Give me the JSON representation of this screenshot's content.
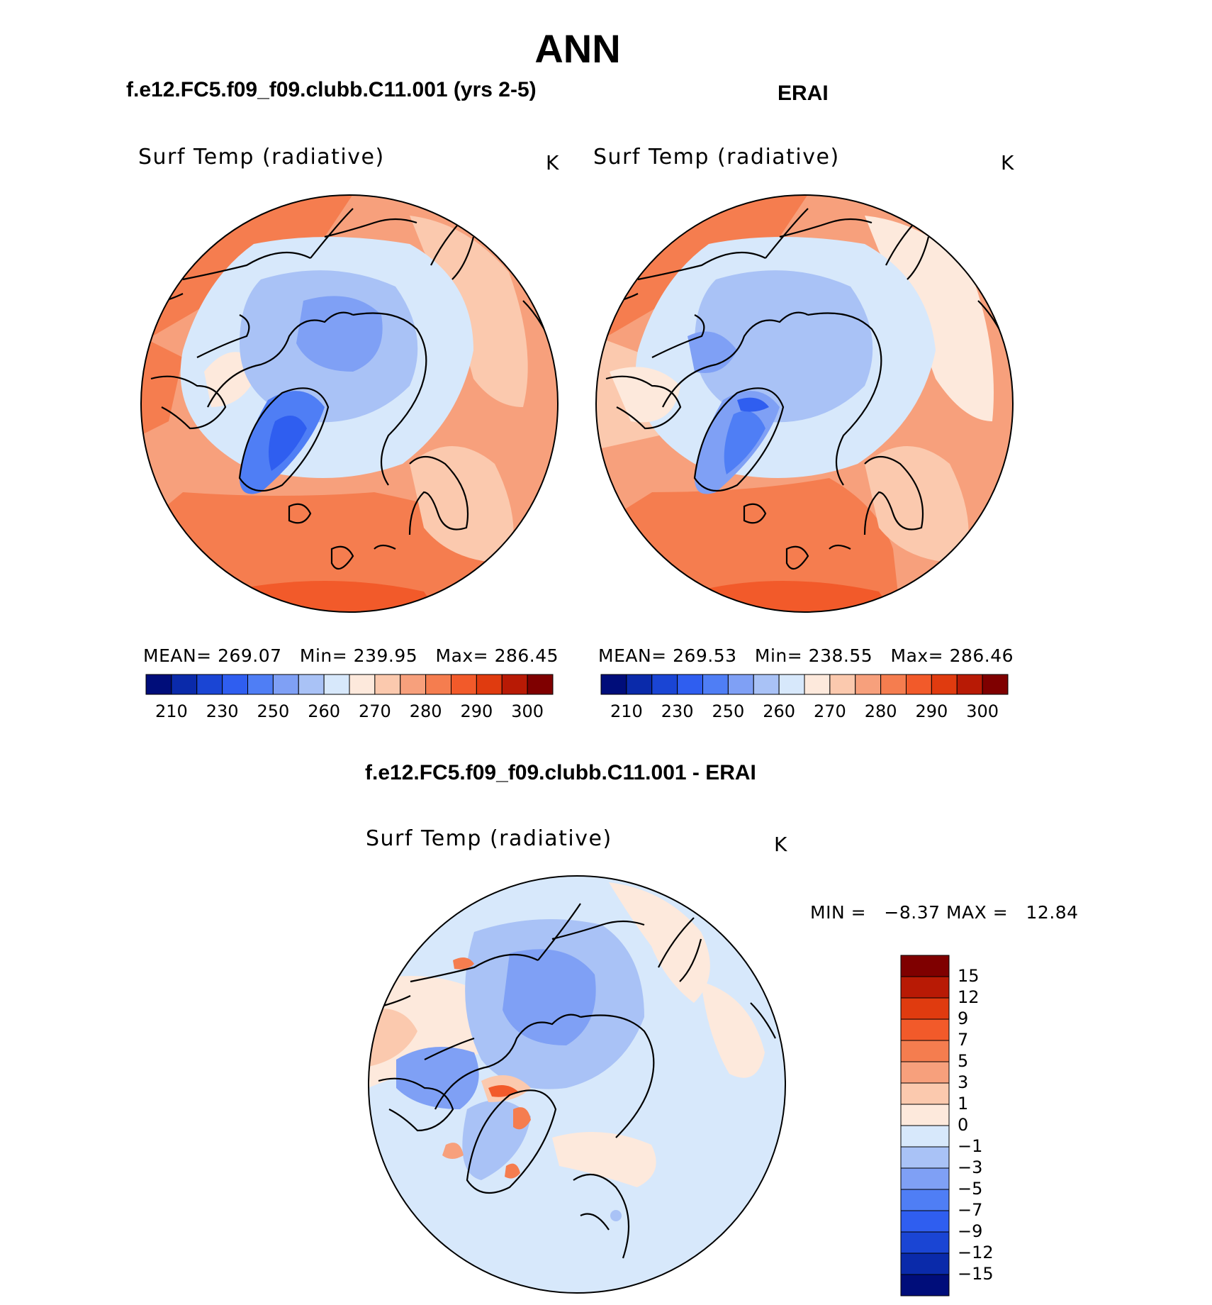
{
  "page_title": "ANN",
  "chart_data": [
    {
      "type": "heatmap",
      "projection": "north-polar-stereographic",
      "title": "f.e12.FC5.f09_f09.clubb.C11.001 (yrs 2-5)",
      "variable": "Surf Temp (radiative)",
      "units": "K",
      "stats": {
        "mean_label": "MEAN=",
        "mean": "269.07",
        "min_label": "Min=",
        "min": "239.95",
        "max_label": "Max=",
        "max": "286.45"
      },
      "colorbar": {
        "colors": [
          "#000d7a",
          "#0a2aaa",
          "#1a45d4",
          "#2f5ef0",
          "#4f7ef5",
          "#7fa0f5",
          "#a9c2f6",
          "#d7e8fb",
          "#fde9dc",
          "#fbc9ae",
          "#f7a07c",
          "#f57d4f",
          "#f25a2a",
          "#e03b0f",
          "#b81a05",
          "#7f0000"
        ],
        "tick_labels": [
          "210",
          "230",
          "250",
          "260",
          "270",
          "280",
          "290",
          "300"
        ]
      }
    },
    {
      "type": "heatmap",
      "projection": "north-polar-stereographic",
      "title": "ERAI",
      "variable": "Surf Temp (radiative)",
      "units": "K",
      "stats": {
        "mean_label": "MEAN=",
        "mean": "269.53",
        "min_label": "Min=",
        "min": "238.55",
        "max_label": "Max=",
        "max": "286.46"
      },
      "colorbar": {
        "colors": [
          "#000d7a",
          "#0a2aaa",
          "#1a45d4",
          "#2f5ef0",
          "#4f7ef5",
          "#7fa0f5",
          "#a9c2f6",
          "#d7e8fb",
          "#fde9dc",
          "#fbc9ae",
          "#f7a07c",
          "#f57d4f",
          "#f25a2a",
          "#e03b0f",
          "#b81a05",
          "#7f0000"
        ],
        "tick_labels": [
          "210",
          "230",
          "250",
          "260",
          "270",
          "280",
          "290",
          "300"
        ]
      }
    },
    {
      "type": "heatmap",
      "projection": "north-polar-stereographic",
      "title": "f.e12.FC5.f09_f09.clubb.C11.001 - ERAI",
      "variable": "Surf Temp (radiative)",
      "units": "K",
      "stats": {
        "min_label": "MIN =",
        "min": "−8.37",
        "max_label": "MAX =",
        "max": "12.84"
      },
      "colorbar": {
        "orientation": "vertical",
        "colors": [
          "#7f0000",
          "#b81a05",
          "#e03b0f",
          "#f25a2a",
          "#f57d4f",
          "#f7a07c",
          "#fbc9ae",
          "#fde9dc",
          "#d7e8fb",
          "#a9c2f6",
          "#7fa0f5",
          "#4f7ef5",
          "#2f5ef0",
          "#1a45d4",
          "#0a2aaa",
          "#000d7a"
        ],
        "tick_labels": [
          "15",
          "12",
          "9",
          "7",
          "5",
          "3",
          "1",
          "0",
          "−1",
          "−3",
          "−5",
          "−7",
          "−9",
          "−12",
          "−15"
        ]
      }
    }
  ]
}
